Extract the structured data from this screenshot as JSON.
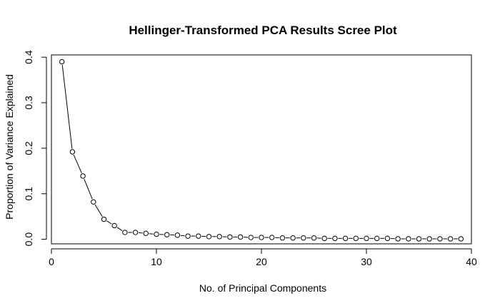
{
  "chart_data": {
    "type": "line",
    "title": "Hellinger-Transformed PCA Results Scree Plot",
    "xlabel": "No. of Principal Components",
    "ylabel": "Proportion of Variance Explained",
    "xlim": [
      0,
      40
    ],
    "ylim": [
      -0.01,
      0.405
    ],
    "xticks": [
      0,
      10,
      20,
      30,
      40
    ],
    "yticks": [
      0.0,
      0.1,
      0.2,
      0.3,
      0.4
    ],
    "xtick_labels": [
      "0",
      "10",
      "20",
      "30",
      "40"
    ],
    "ytick_labels": [
      "0.0",
      "0.1",
      "0.2",
      "0.3",
      "0.4"
    ],
    "grid": false,
    "legend": "none",
    "line_style": "segments with gaps around points",
    "x": [
      1,
      2,
      3,
      4,
      5,
      6,
      7,
      8,
      9,
      10,
      11,
      12,
      13,
      14,
      15,
      16,
      17,
      18,
      19,
      20,
      21,
      22,
      23,
      24,
      25,
      26,
      27,
      28,
      29,
      30,
      31,
      32,
      33,
      34,
      35,
      36,
      37,
      38,
      39
    ],
    "values": [
      0.39,
      0.192,
      0.139,
      0.082,
      0.044,
      0.03,
      0.015,
      0.015,
      0.013,
      0.011,
      0.01,
      0.009,
      0.007,
      0.007,
      0.006,
      0.006,
      0.005,
      0.005,
      0.004,
      0.004,
      0.004,
      0.003,
      0.003,
      0.003,
      0.003,
      0.002,
      0.002,
      0.002,
      0.002,
      0.002,
      0.002,
      0.002,
      0.001,
      0.001,
      0.001,
      0.001,
      0.001,
      0.001,
      0.001
    ]
  }
}
